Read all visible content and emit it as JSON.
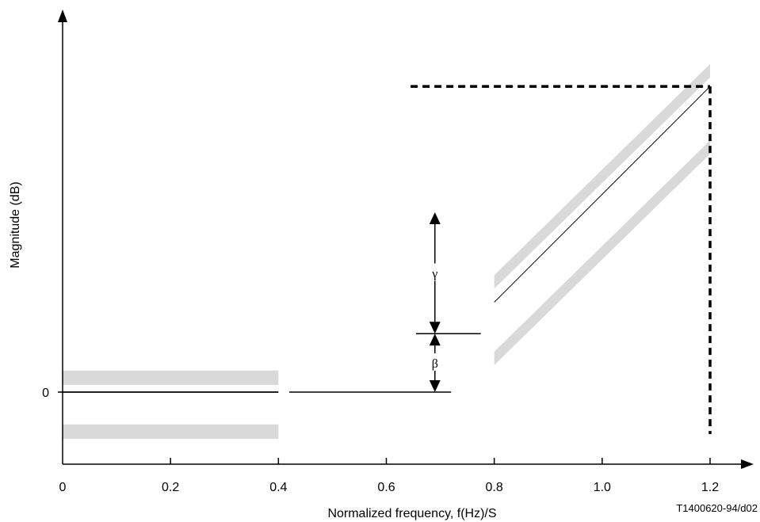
{
  "chart_data": {
    "type": "line",
    "xlabel": "Normalized frequency, f(Hz)/S",
    "ylabel": "Magnitude (dB)",
    "xlim": [
      0,
      1.2
    ],
    "x_ticks": [
      "0",
      "0.2",
      "0.4",
      "0.6",
      "0.8",
      "1.0",
      "1.2"
    ],
    "x_tick_values": [
      0,
      0.2,
      0.4,
      0.6,
      0.8,
      1.0,
      1.2
    ],
    "y_ticks": [
      "0"
    ],
    "grid": false,
    "legend": "none",
    "colors": {
      "line": "#000000",
      "tolerance_band": "#d9d9d9"
    },
    "series": [
      {
        "values": [
          {
            "x": 0,
            "y": 0
          },
          {
            "x": 0.4,
            "y": 0
          }
        ]
      },
      {
        "values": [
          {
            "x": 0.8,
            "y": 1
          },
          {
            "x": 1.2,
            "y": 3.4
          }
        ]
      }
    ],
    "tolerance_bands": [
      {
        "x": [
          0,
          0.4
        ],
        "y_low": 0.08,
        "y_high": 0.24
      },
      {
        "x": [
          0,
          0.4
        ],
        "y_low": -0.52,
        "y_high": -0.36
      },
      {
        "x": [
          0.8,
          1.2
        ],
        "y_low_start": 1.15,
        "y_high_start": 1.3,
        "y_low_end": 3.5,
        "y_high_end": 3.65
      },
      {
        "x": [
          0.8,
          1.2
        ],
        "y_low_start": 0.3,
        "y_high_start": 0.45,
        "y_low_end": 2.65,
        "y_high_end": 2.8
      }
    ],
    "annotations": [
      {
        "label": "β",
        "from": 0,
        "to": 0.65,
        "x": 0.69
      },
      {
        "label": "γ",
        "from": 0.65,
        "to": 2.0,
        "x": 0.69
      }
    ],
    "reference_code": "T1400620-94/d02"
  }
}
